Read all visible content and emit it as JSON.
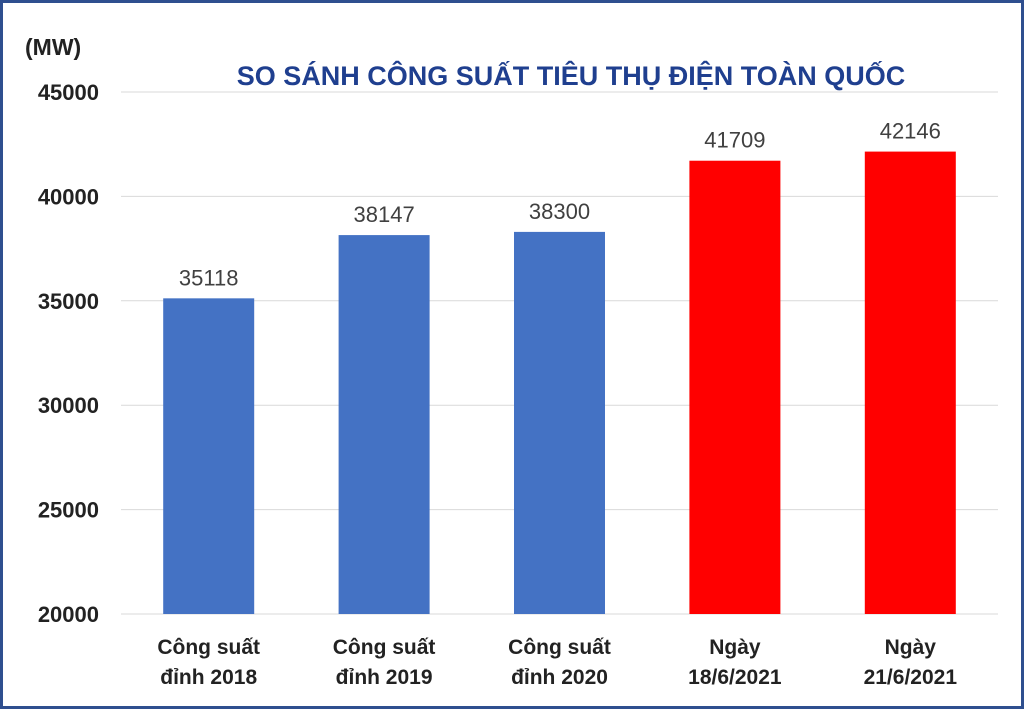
{
  "chart_data": {
    "type": "bar",
    "title": "SO SÁNH CÔNG SUẤT TIÊU THỤ ĐIỆN TOÀN QUỐC",
    "ylabel": "(MW)",
    "xlabel": "",
    "ylim": [
      20000,
      45000
    ],
    "yticks": [
      "20000",
      "25000",
      "30000",
      "35000",
      "40000",
      "45000"
    ],
    "grid": true,
    "categories": [
      [
        "Công suất",
        "đỉnh 2018"
      ],
      [
        "Công suất",
        "đỉnh 2019"
      ],
      [
        "Công suất",
        "đỉnh 2020"
      ],
      [
        "Ngày",
        "18/6/2021"
      ],
      [
        "Ngày",
        "21/6/2021"
      ]
    ],
    "values": [
      35118,
      38147,
      38300,
      41709,
      42146
    ],
    "bar_colors": [
      "#4472c4",
      "#4472c4",
      "#4472c4",
      "#ff0000",
      "#ff0000"
    ],
    "title_color": "#1f3f8f",
    "text_color": "#222222",
    "data_label_color": "#404040",
    "grid_color": "#d9d9d9"
  }
}
